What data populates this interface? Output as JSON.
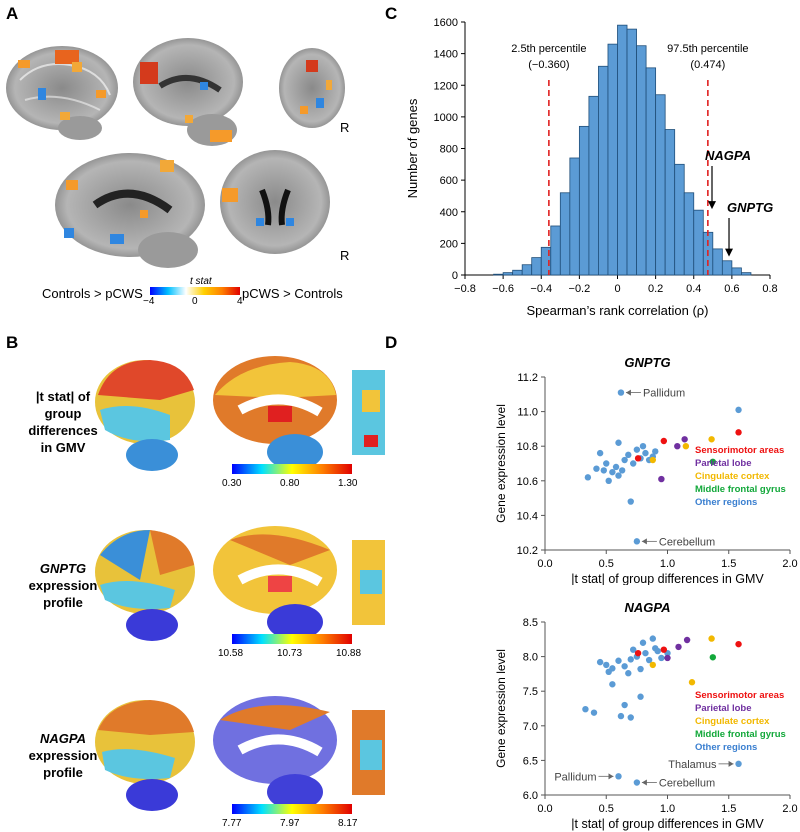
{
  "panels": {
    "a": "A",
    "b": "B",
    "c": "C",
    "d": "D"
  },
  "panel_a": {
    "r_label_1": "R",
    "r_label_2": "R",
    "colorbar_title": "t stat",
    "left_label": "Controls > pCWS",
    "right_label": "pCWS > Controls",
    "ticks": [
      "−4",
      "0",
      "4"
    ]
  },
  "panel_b": {
    "rows": [
      {
        "l1": "|t stat| of",
        "l2": "group",
        "l3": "differences",
        "l4": "in GMV",
        "ticks": [
          "0.30",
          "0.80",
          "1.30"
        ]
      },
      {
        "l1": "GNPTG",
        "l2": "expression",
        "l3": "profile",
        "ticks": [
          "10.58",
          "10.73",
          "10.88"
        ]
      },
      {
        "l1": "NAGPA",
        "l2": "expression",
        "l3": "profile",
        "ticks": [
          "7.77",
          "7.97",
          "8.17"
        ]
      }
    ]
  },
  "chart_data": [
    {
      "type": "bar",
      "panel": "C",
      "xlabel": "Spearman’s rank correlation (ρ)",
      "ylabel": "Number of genes",
      "xlim": [
        -0.8,
        0.8
      ],
      "ylim": [
        0,
        1600
      ],
      "xticks": [
        "−0.8",
        "−0.6",
        "−0.4",
        "−0.2",
        "0",
        "0.2",
        "0.4",
        "0.6",
        "0.8"
      ],
      "yticks": [
        "0",
        "200",
        "400",
        "600",
        "800",
        "1000",
        "1200",
        "1400",
        "1600"
      ],
      "bin_width": 0.05,
      "bin_starts": [
        -0.65,
        -0.6,
        -0.55,
        -0.5,
        -0.45,
        -0.4,
        -0.35,
        -0.3,
        -0.25,
        -0.2,
        -0.15,
        -0.1,
        -0.05,
        0.0,
        0.05,
        0.1,
        0.15,
        0.2,
        0.25,
        0.3,
        0.35,
        0.4,
        0.45,
        0.5,
        0.55,
        0.6,
        0.65
      ],
      "values": [
        5,
        15,
        30,
        65,
        110,
        175,
        310,
        520,
        740,
        940,
        1130,
        1320,
        1460,
        1580,
        1555,
        1450,
        1310,
        1140,
        920,
        700,
        520,
        410,
        270,
        165,
        90,
        45,
        15
      ],
      "lines": [
        {
          "x": -0.36,
          "label1": "2.5th percentile",
          "label2": "(−0.360)"
        },
        {
          "x": 0.474,
          "label1": "97.5th percentile",
          "label2": "(0.474)"
        }
      ],
      "annotations": [
        {
          "text": "NAGPA",
          "x": 0.48,
          "y": 410
        },
        {
          "text": "GNPTG",
          "x": 0.56,
          "y": 110
        }
      ]
    },
    {
      "type": "scatter",
      "panel": "D-top",
      "title": "GNPTG",
      "xlabel": "|t stat| of group differences in GMV",
      "ylabel": "Gene expression level",
      "xlim": [
        0,
        2.0
      ],
      "ylim": [
        10.2,
        11.2
      ],
      "xticks": [
        "0.0",
        "0.5",
        "1.0",
        "1.5",
        "2.0"
      ],
      "yticks": [
        "10.2",
        "10.4",
        "10.6",
        "10.8",
        "11.0",
        "11.2"
      ],
      "points": [
        {
          "x": 0.62,
          "y": 11.11,
          "g": "o"
        },
        {
          "x": 0.75,
          "y": 10.25,
          "g": "o"
        },
        {
          "x": 0.45,
          "y": 10.76,
          "g": "o"
        },
        {
          "x": 0.35,
          "y": 10.62,
          "g": "o"
        },
        {
          "x": 0.42,
          "y": 10.67,
          "g": "o"
        },
        {
          "x": 0.5,
          "y": 10.7,
          "g": "o"
        },
        {
          "x": 0.55,
          "y": 10.65,
          "g": "o"
        },
        {
          "x": 0.58,
          "y": 10.68,
          "g": "o"
        },
        {
          "x": 0.6,
          "y": 10.63,
          "g": "o"
        },
        {
          "x": 0.63,
          "y": 10.66,
          "g": "o"
        },
        {
          "x": 0.65,
          "y": 10.72,
          "g": "o"
        },
        {
          "x": 0.68,
          "y": 10.75,
          "g": "o"
        },
        {
          "x": 0.7,
          "y": 10.48,
          "g": "o"
        },
        {
          "x": 0.72,
          "y": 10.7,
          "g": "o"
        },
        {
          "x": 0.75,
          "y": 10.78,
          "g": "o"
        },
        {
          "x": 0.78,
          "y": 10.73,
          "g": "o"
        },
        {
          "x": 0.8,
          "y": 10.8,
          "g": "o"
        },
        {
          "x": 0.82,
          "y": 10.76,
          "g": "o"
        },
        {
          "x": 0.85,
          "y": 10.72,
          "g": "o"
        },
        {
          "x": 0.88,
          "y": 10.74,
          "g": "o"
        },
        {
          "x": 0.9,
          "y": 10.77,
          "g": "o"
        },
        {
          "x": 0.52,
          "y": 10.6,
          "g": "o"
        },
        {
          "x": 0.48,
          "y": 10.66,
          "g": "o"
        },
        {
          "x": 1.58,
          "y": 11.01,
          "g": "o"
        },
        {
          "x": 0.6,
          "y": 10.82,
          "g": "o"
        },
        {
          "x": 0.76,
          "y": 10.73,
          "g": "s"
        },
        {
          "x": 0.97,
          "y": 10.83,
          "g": "s"
        },
        {
          "x": 1.58,
          "y": 10.88,
          "g": "s"
        },
        {
          "x": 0.95,
          "y": 10.61,
          "g": "p"
        },
        {
          "x": 1.08,
          "y": 10.8,
          "g": "p"
        },
        {
          "x": 1.14,
          "y": 10.84,
          "g": "p"
        },
        {
          "x": 0.88,
          "y": 10.72,
          "g": "c"
        },
        {
          "x": 1.15,
          "y": 10.8,
          "g": "c"
        },
        {
          "x": 1.36,
          "y": 10.84,
          "g": "c"
        },
        {
          "x": 1.37,
          "y": 10.71,
          "g": "m"
        }
      ],
      "labels": [
        {
          "text": "Pallidum",
          "x": 0.62,
          "y": 11.11,
          "side": "right"
        },
        {
          "text": "Cerebellum",
          "x": 0.75,
          "y": 10.25,
          "side": "right"
        }
      ]
    },
    {
      "type": "scatter",
      "panel": "D-bottom",
      "title": "NAGPA",
      "xlabel": "|t stat| of group differences in GMV",
      "ylabel": "Gene expression level",
      "xlim": [
        0,
        2.0
      ],
      "ylim": [
        6.0,
        8.5
      ],
      "xticks": [
        "0.0",
        "0.5",
        "1.0",
        "1.5",
        "2.0"
      ],
      "yticks": [
        "6.0",
        "6.5",
        "7.0",
        "7.5",
        "8.0",
        "8.5"
      ],
      "points": [
        {
          "x": 0.6,
          "y": 6.27,
          "g": "o"
        },
        {
          "x": 0.75,
          "y": 6.18,
          "g": "o"
        },
        {
          "x": 1.58,
          "y": 6.45,
          "g": "o"
        },
        {
          "x": 0.33,
          "y": 7.24,
          "g": "o"
        },
        {
          "x": 0.4,
          "y": 7.19,
          "g": "o"
        },
        {
          "x": 0.62,
          "y": 7.14,
          "g": "o"
        },
        {
          "x": 0.7,
          "y": 7.12,
          "g": "o"
        },
        {
          "x": 0.65,
          "y": 7.3,
          "g": "o"
        },
        {
          "x": 0.78,
          "y": 7.42,
          "g": "o"
        },
        {
          "x": 0.55,
          "y": 7.6,
          "g": "o"
        },
        {
          "x": 0.45,
          "y": 7.92,
          "g": "o"
        },
        {
          "x": 0.5,
          "y": 7.88,
          "g": "o"
        },
        {
          "x": 0.55,
          "y": 7.83,
          "g": "o"
        },
        {
          "x": 0.6,
          "y": 7.94,
          "g": "o"
        },
        {
          "x": 0.65,
          "y": 7.86,
          "g": "o"
        },
        {
          "x": 0.7,
          "y": 7.96,
          "g": "o"
        },
        {
          "x": 0.72,
          "y": 8.1,
          "g": "o"
        },
        {
          "x": 0.75,
          "y": 8.0,
          "g": "o"
        },
        {
          "x": 0.8,
          "y": 8.2,
          "g": "o"
        },
        {
          "x": 0.82,
          "y": 8.05,
          "g": "o"
        },
        {
          "x": 0.85,
          "y": 7.95,
          "g": "o"
        },
        {
          "x": 0.88,
          "y": 8.26,
          "g": "o"
        },
        {
          "x": 0.9,
          "y": 8.12,
          "g": "o"
        },
        {
          "x": 0.92,
          "y": 8.08,
          "g": "o"
        },
        {
          "x": 0.95,
          "y": 7.98,
          "g": "o"
        },
        {
          "x": 0.78,
          "y": 7.82,
          "g": "o"
        },
        {
          "x": 0.68,
          "y": 7.76,
          "g": "o"
        },
        {
          "x": 1.0,
          "y": 8.05,
          "g": "o"
        },
        {
          "x": 0.52,
          "y": 7.78,
          "g": "o"
        },
        {
          "x": 0.76,
          "y": 8.05,
          "g": "s"
        },
        {
          "x": 0.97,
          "y": 8.1,
          "g": "s"
        },
        {
          "x": 1.58,
          "y": 8.18,
          "g": "s"
        },
        {
          "x": 1.0,
          "y": 7.98,
          "g": "p"
        },
        {
          "x": 1.09,
          "y": 8.14,
          "g": "p"
        },
        {
          "x": 1.16,
          "y": 8.24,
          "g": "p"
        },
        {
          "x": 0.88,
          "y": 7.88,
          "g": "c"
        },
        {
          "x": 1.2,
          "y": 7.63,
          "g": "c"
        },
        {
          "x": 1.36,
          "y": 8.26,
          "g": "c"
        },
        {
          "x": 1.37,
          "y": 7.99,
          "g": "m"
        }
      ],
      "labels": [
        {
          "text": "Pallidum",
          "x": 0.6,
          "y": 6.27,
          "side": "left"
        },
        {
          "text": "Cerebellum",
          "x": 0.75,
          "y": 6.18,
          "side": "right"
        },
        {
          "text": "Thalamus",
          "x": 1.58,
          "y": 6.45,
          "side": "left"
        }
      ]
    }
  ],
  "legend": [
    {
      "key": "s",
      "text": "Sensorimotor areas",
      "color": "#ee1111"
    },
    {
      "key": "p",
      "text": "Parietal lobe",
      "color": "#7030a0"
    },
    {
      "key": "c",
      "text": "Cingulate cortex",
      "color": "#f2b800"
    },
    {
      "key": "m",
      "text": "Middle frontal gyrus",
      "color": "#12a83a"
    },
    {
      "key": "o",
      "text": "Other regions",
      "color": "#3a7fd0"
    }
  ],
  "colors": {
    "bar_fill": "#5b9bd5",
    "bar_stroke": "#1f4e79",
    "dash_red": "#e02020",
    "other_point": "#5b9bd5"
  }
}
